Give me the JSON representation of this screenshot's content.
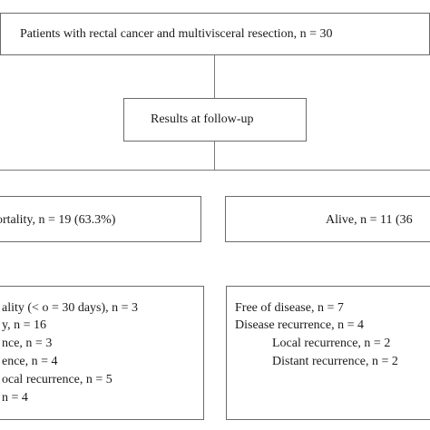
{
  "flowchart": {
    "top_box": {
      "text": "Patients with rectal cancer and multivisceral resection, n = 30"
    },
    "followup_box": {
      "text": "Results at follow-up"
    },
    "mortality_box": {
      "text": "ortality, n = 19 (63.3%)"
    },
    "alive_box": {
      "text": "Alive, n = 11 (36"
    },
    "mortality_details": {
      "lines": [
        "ality (< o = 30 days), n = 3",
        "y, n = 16",
        "nce, n = 3",
        "ence, n = 4",
        "ocal recurrence, n = 5",
        "n = 4"
      ]
    },
    "alive_details": {
      "lines": [
        "Free of disease, n = 7",
        "Disease recurrence, n = 4",
        "Local recurrence, n = 2",
        "Distant recurrence, n = 2"
      ]
    }
  }
}
